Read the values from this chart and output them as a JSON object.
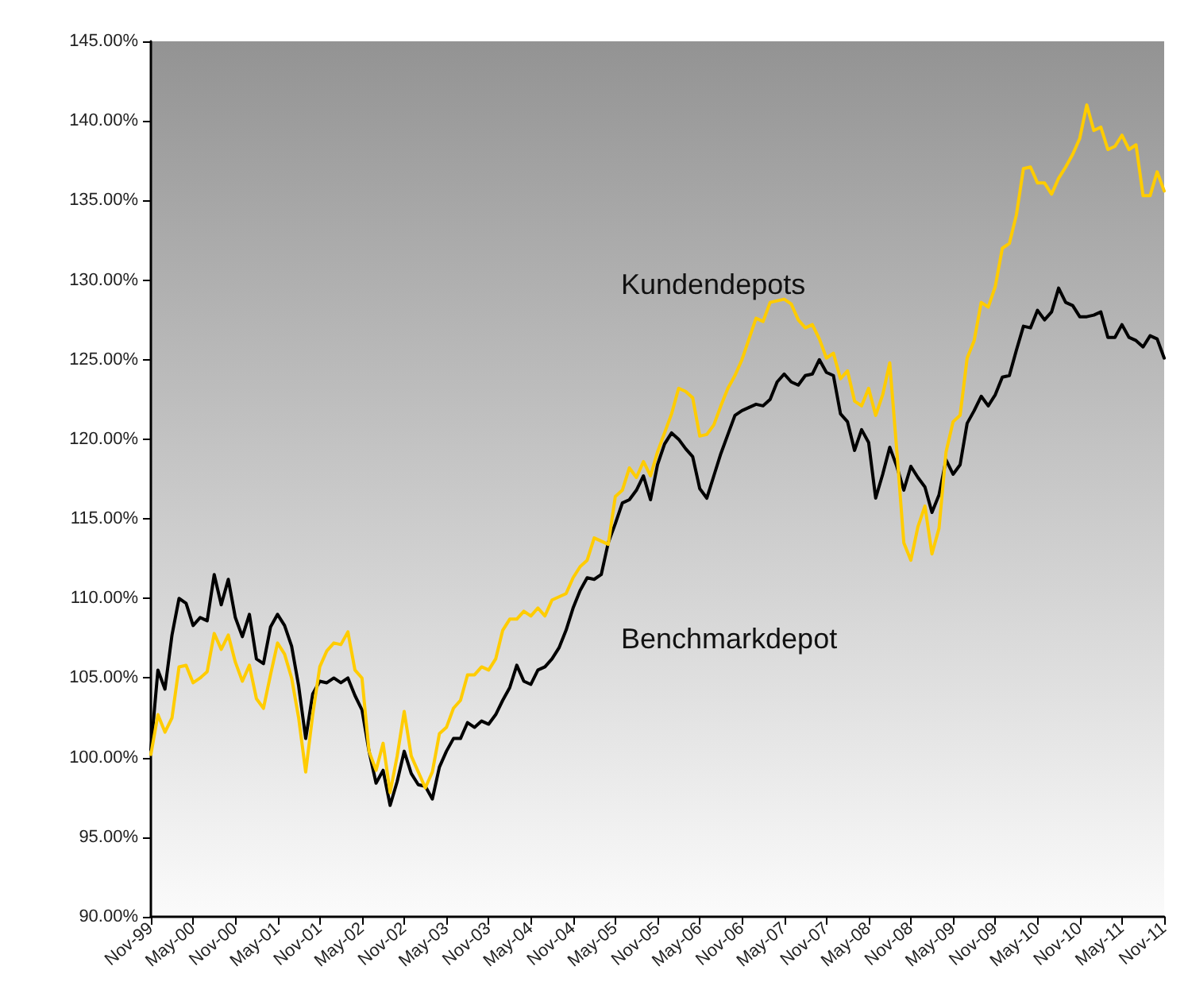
{
  "chart_data": {
    "type": "line",
    "categories": [
      "Nov-99",
      null,
      null,
      null,
      null,
      null,
      "May-00",
      null,
      null,
      null,
      null,
      null,
      "Nov-00",
      null,
      null,
      null,
      null,
      null,
      "May-01",
      null,
      null,
      null,
      null,
      null,
      "Nov-01",
      null,
      null,
      null,
      null,
      null,
      "May-02",
      null,
      null,
      null,
      null,
      null,
      "Nov-02",
      null,
      null,
      null,
      null,
      null,
      "May-03",
      null,
      null,
      null,
      null,
      null,
      "Nov-03",
      null,
      null,
      null,
      null,
      null,
      "May-04",
      null,
      null,
      null,
      null,
      null,
      "Nov-04",
      null,
      null,
      null,
      null,
      null,
      "May-05",
      null,
      null,
      null,
      null,
      null,
      "Nov-05",
      null,
      null,
      null,
      null,
      null,
      "May-06",
      null,
      null,
      null,
      null,
      null,
      "Nov-06",
      null,
      null,
      null,
      null,
      null,
      "May-07",
      null,
      null,
      null,
      null,
      null,
      "Nov-07",
      null,
      null,
      null,
      null,
      null,
      "May-08",
      null,
      null,
      null,
      null,
      null,
      "Nov-08",
      null,
      null,
      null,
      null,
      null,
      "May-09",
      null,
      null,
      null,
      null,
      null,
      "Nov-09",
      null,
      null,
      null,
      null,
      null,
      "May-10",
      null,
      null,
      null,
      null,
      null,
      "Nov-10",
      null,
      null,
      null,
      null,
      null,
      "May-11",
      null,
      null,
      null,
      null,
      null,
      "Nov-11"
    ],
    "series": [
      {
        "name": "Kundendepots",
        "color": "#ffcc00",
        "values": [
          100.2,
          102.7,
          101.6,
          102.5,
          105.7,
          105.8,
          104.7,
          105.0,
          105.4,
          107.8,
          106.8,
          107.7,
          106.0,
          104.8,
          105.8,
          103.7,
          103.1,
          105.2,
          107.2,
          106.5,
          105.0,
          102.5,
          99.1,
          102.7,
          105.7,
          106.7,
          107.2,
          107.1,
          107.9,
          105.5,
          105.0,
          100.4,
          99.2,
          100.9,
          97.8,
          100.1,
          102.9,
          100.1,
          99.1,
          98.1,
          99.1,
          101.5,
          101.9,
          103.1,
          103.6,
          105.2,
          105.2,
          105.7,
          105.5,
          106.2,
          108.0,
          108.7,
          108.7,
          109.2,
          108.9,
          109.4,
          108.9,
          109.9,
          110.1,
          110.3,
          111.3,
          112.0,
          112.4,
          113.8,
          113.6,
          113.4,
          116.4,
          116.8,
          118.2,
          117.6,
          118.6,
          117.7,
          119.2,
          120.4,
          121.6,
          123.2,
          123.0,
          122.6,
          120.2,
          120.3,
          120.9,
          122.1,
          123.2,
          124.0,
          125.0,
          126.3,
          127.6,
          127.4,
          128.6,
          128.7,
          128.8,
          128.5,
          127.5,
          127.0,
          127.2,
          126.3,
          125.1,
          125.4,
          123.8,
          124.3,
          122.4,
          122.1,
          123.2,
          121.5,
          122.8,
          124.8,
          119.3,
          113.5,
          112.4,
          114.5,
          115.8,
          112.8,
          114.4,
          119.2,
          121.1,
          121.5,
          125.1,
          126.2,
          128.6,
          128.3,
          129.6,
          132.0,
          132.3,
          134.1,
          137.0,
          137.1,
          136.1,
          136.1,
          135.4,
          136.4,
          137.1,
          137.9,
          138.9,
          141.0,
          139.4,
          139.6,
          138.2,
          138.4,
          139.1,
          138.2,
          138.5,
          135.3,
          135.3,
          136.8,
          135.6
        ]
      },
      {
        "name": "Benchmarkdepot",
        "color": "#000000",
        "values": [
          100.5,
          105.5,
          104.3,
          107.7,
          110.0,
          109.7,
          108.3,
          108.8,
          108.6,
          111.5,
          109.6,
          111.2,
          108.8,
          107.6,
          109.0,
          106.2,
          105.9,
          108.2,
          109.0,
          108.3,
          107.0,
          104.5,
          101.2,
          104.0,
          104.8,
          104.7,
          105.0,
          104.7,
          105.0,
          103.9,
          103.0,
          100.4,
          98.4,
          99.2,
          97.0,
          98.5,
          100.4,
          99.0,
          98.3,
          98.2,
          97.4,
          99.4,
          100.4,
          101.2,
          101.2,
          102.2,
          101.9,
          102.3,
          102.1,
          102.7,
          103.6,
          104.4,
          105.8,
          104.8,
          104.6,
          105.5,
          105.7,
          106.2,
          106.9,
          108.0,
          109.4,
          110.5,
          111.3,
          111.2,
          111.5,
          113.5,
          114.7,
          116.0,
          116.2,
          116.8,
          117.7,
          116.2,
          118.4,
          119.7,
          120.4,
          120.0,
          119.4,
          118.9,
          116.9,
          116.3,
          117.7,
          119.1,
          120.3,
          121.5,
          121.8,
          122.0,
          122.2,
          122.1,
          122.5,
          123.6,
          124.1,
          123.6,
          123.4,
          124.0,
          124.1,
          125.0,
          124.2,
          124.0,
          121.6,
          121.1,
          119.3,
          120.6,
          119.8,
          116.3,
          117.8,
          119.5,
          118.3,
          116.8,
          118.3,
          117.6,
          117.0,
          115.4,
          116.5,
          118.7,
          117.8,
          118.4,
          121.0,
          121.8,
          122.7,
          122.1,
          122.8,
          123.9,
          124.0,
          125.6,
          127.1,
          127.0,
          128.1,
          127.5,
          128.0,
          129.5,
          128.6,
          128.4,
          127.7,
          127.7,
          127.8,
          128.0,
          126.4,
          126.4,
          127.2,
          126.4,
          126.2,
          125.8,
          126.5,
          126.3,
          125.1
        ]
      }
    ],
    "ylim": [
      90,
      145
    ],
    "yticks": [
      {
        "value": 90,
        "label": "90.00%"
      },
      {
        "value": 95,
        "label": "95.00%"
      },
      {
        "value": 100,
        "label": "100.00%"
      },
      {
        "value": 105,
        "label": "105.00%"
      },
      {
        "value": 110,
        "label": "110.00%"
      },
      {
        "value": 115,
        "label": "115.00%"
      },
      {
        "value": 120,
        "label": "120.00%"
      },
      {
        "value": 125,
        "label": "125.00%"
      },
      {
        "value": 130,
        "label": "130.00%"
      },
      {
        "value": 135,
        "label": "135.00%"
      },
      {
        "value": 140,
        "label": "140.00%"
      },
      {
        "value": 145,
        "label": "145.00%"
      }
    ],
    "grid": false,
    "legend": false,
    "marker": "none",
    "line_style": "solid"
  }
}
